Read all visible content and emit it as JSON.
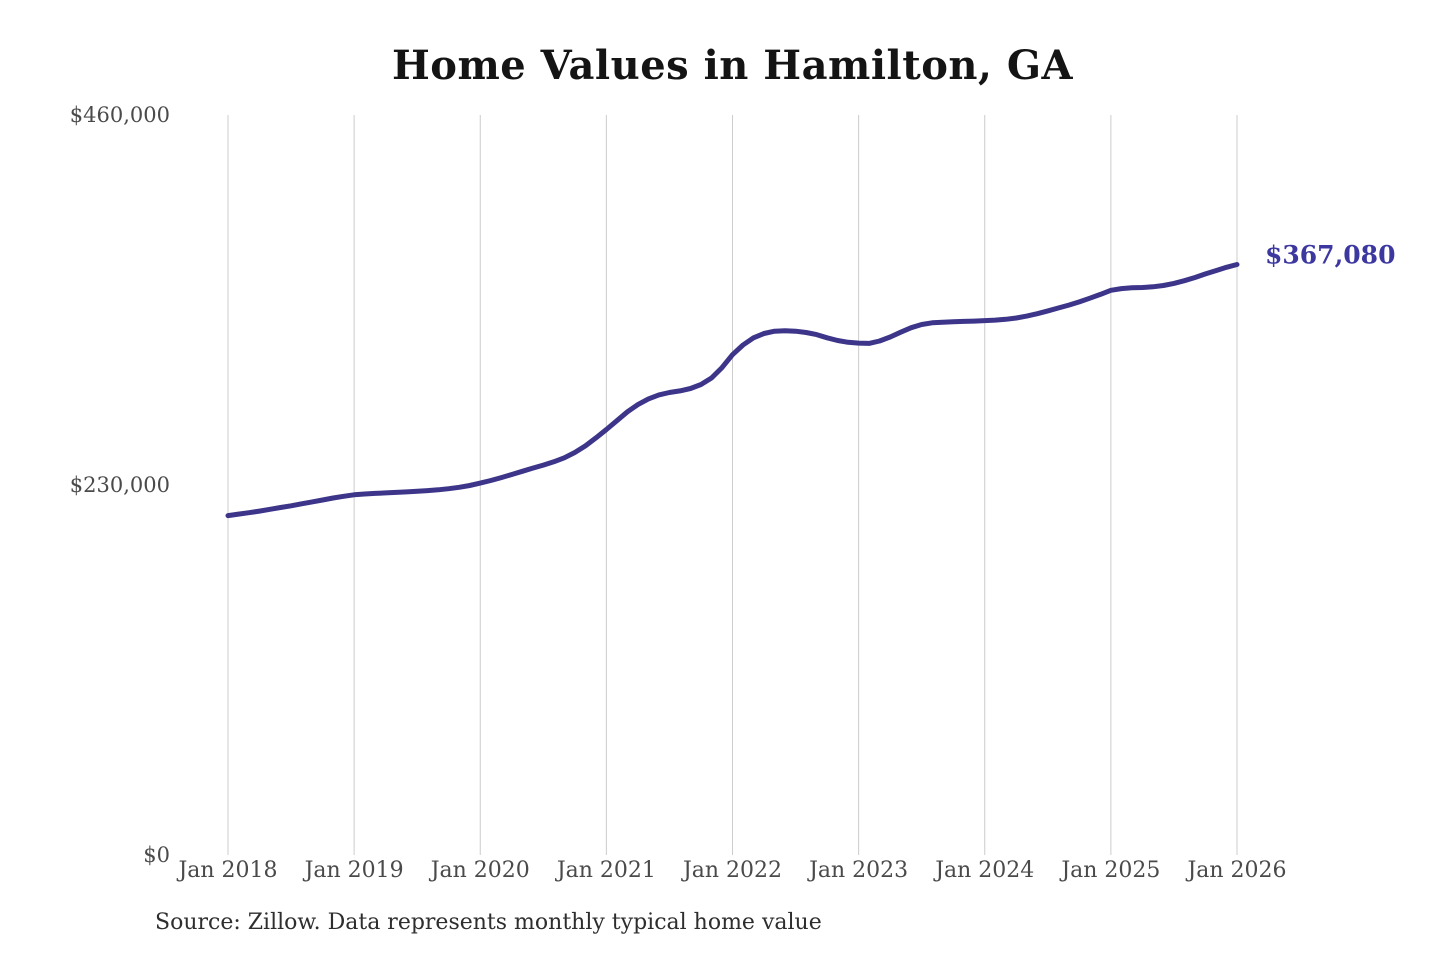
{
  "title": "Home Values in Hamilton, GA",
  "source_note": "Source: Zillow. Data represents monthly typical home value",
  "colors": {
    "background": "#ffffff",
    "line": "#3d3589",
    "annotation": "#3c38a0",
    "grid": "#cccccc",
    "axis_text": "#4a4a4a",
    "title_text": "#141414",
    "source_text": "#2e2e2e"
  },
  "chart_data": {
    "type": "line",
    "title": "Home Values in Hamilton, GA",
    "cadence": "monthly",
    "x_start": "Jan 2018",
    "x_end": "Jan 2026",
    "x_tick_labels": [
      "Jan 2018",
      "Jan 2019",
      "Jan 2020",
      "Jan 2021",
      "Jan 2022",
      "Jan 2023",
      "Jan 2024",
      "Jan 2025",
      "Jan 2026"
    ],
    "y_ticks": [
      {
        "label": "$0",
        "value": 0
      },
      {
        "label": "$230,000",
        "value": 230000
      },
      {
        "label": "$460,000",
        "value": 460000
      }
    ],
    "ylim": [
      0,
      460000
    ],
    "grid": "vertical-only",
    "legend": "none",
    "end_value": 367080,
    "end_value_label": "$367,080",
    "values": [
      211000,
      211900,
      212800,
      213800,
      214900,
      216000,
      217100,
      218300,
      219500,
      220700,
      221900,
      223000,
      223900,
      224400,
      224800,
      225100,
      225400,
      225700,
      226100,
      226500,
      227000,
      227700,
      228600,
      229700,
      231200,
      232800,
      234600,
      236500,
      238500,
      240500,
      242400,
      244400,
      246900,
      250200,
      254300,
      259300,
      264500,
      270000,
      275500,
      280000,
      283500,
      286000,
      287500,
      288500,
      290000,
      292500,
      296500,
      303000,
      311000,
      317000,
      321500,
      324200,
      325600,
      325900,
      325600,
      324800,
      323500,
      321500,
      319800,
      318700,
      318200,
      318000,
      319500,
      322000,
      325000,
      327800,
      329800,
      330800,
      331200,
      331500,
      331700,
      331900,
      332200,
      332500,
      333000,
      333800,
      335000,
      336500,
      338200,
      340000,
      341800,
      343800,
      346100,
      348500,
      351000,
      352100,
      352600,
      352800,
      353200,
      354000,
      355300,
      357000,
      359000,
      361200,
      363300,
      365300,
      367080
    ]
  }
}
